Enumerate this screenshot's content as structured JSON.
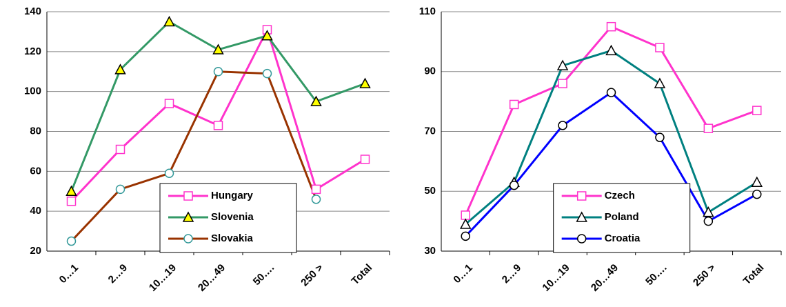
{
  "chart_data": [
    {
      "type": "line",
      "categories": [
        "0…1",
        "2…9",
        "10…19",
        "20…49",
        "50….",
        "250 >",
        "Total"
      ],
      "ylim": [
        20,
        140
      ],
      "yticks": [
        20,
        40,
        60,
        80,
        100,
        120,
        140
      ],
      "grid": true,
      "legend": "bottom-center",
      "series": [
        {
          "name": "Hungary",
          "color": "#ff33cc",
          "marker": "square",
          "marker_color": "#ffffff",
          "values": [
            45,
            71,
            94,
            83,
            131,
            51,
            66
          ]
        },
        {
          "name": "Slovenia",
          "color": "#339966",
          "marker": "triangle",
          "marker_color": "#ffff00",
          "values": [
            50,
            111,
            135,
            121,
            128,
            95,
            104
          ]
        },
        {
          "name": "Slovakia",
          "color": "#993300",
          "marker": "circle",
          "marker_color": "#ffffff",
          "marker_edge": "#339999",
          "values": [
            25,
            51,
            59,
            110,
            109,
            46,
            null
          ]
        }
      ]
    },
    {
      "type": "line",
      "categories": [
        "0…1",
        "2…9",
        "10…19",
        "20…49",
        "50….",
        "250 >",
        "Total"
      ],
      "ylim": [
        30,
        110
      ],
      "yticks": [
        30,
        50,
        70,
        90,
        110
      ],
      "grid": true,
      "legend": "bottom-center",
      "series": [
        {
          "name": "Czech",
          "color": "#ff33cc",
          "marker": "square",
          "marker_color": "#ffffff",
          "values": [
            42,
            79,
            86,
            105,
            98,
            71,
            77
          ]
        },
        {
          "name": "Poland",
          "color": "#008080",
          "marker": "triangle",
          "marker_color": "#ffffff",
          "marker_edge": "#000000",
          "values": [
            39,
            53,
            92,
            97,
            86,
            43,
            53
          ]
        },
        {
          "name": "Croatia",
          "color": "#0000ff",
          "marker": "circle",
          "marker_color": "#ffffff",
          "marker_edge": "#000000",
          "values": [
            35,
            52,
            72,
            83,
            68,
            40,
            49
          ]
        }
      ]
    }
  ]
}
